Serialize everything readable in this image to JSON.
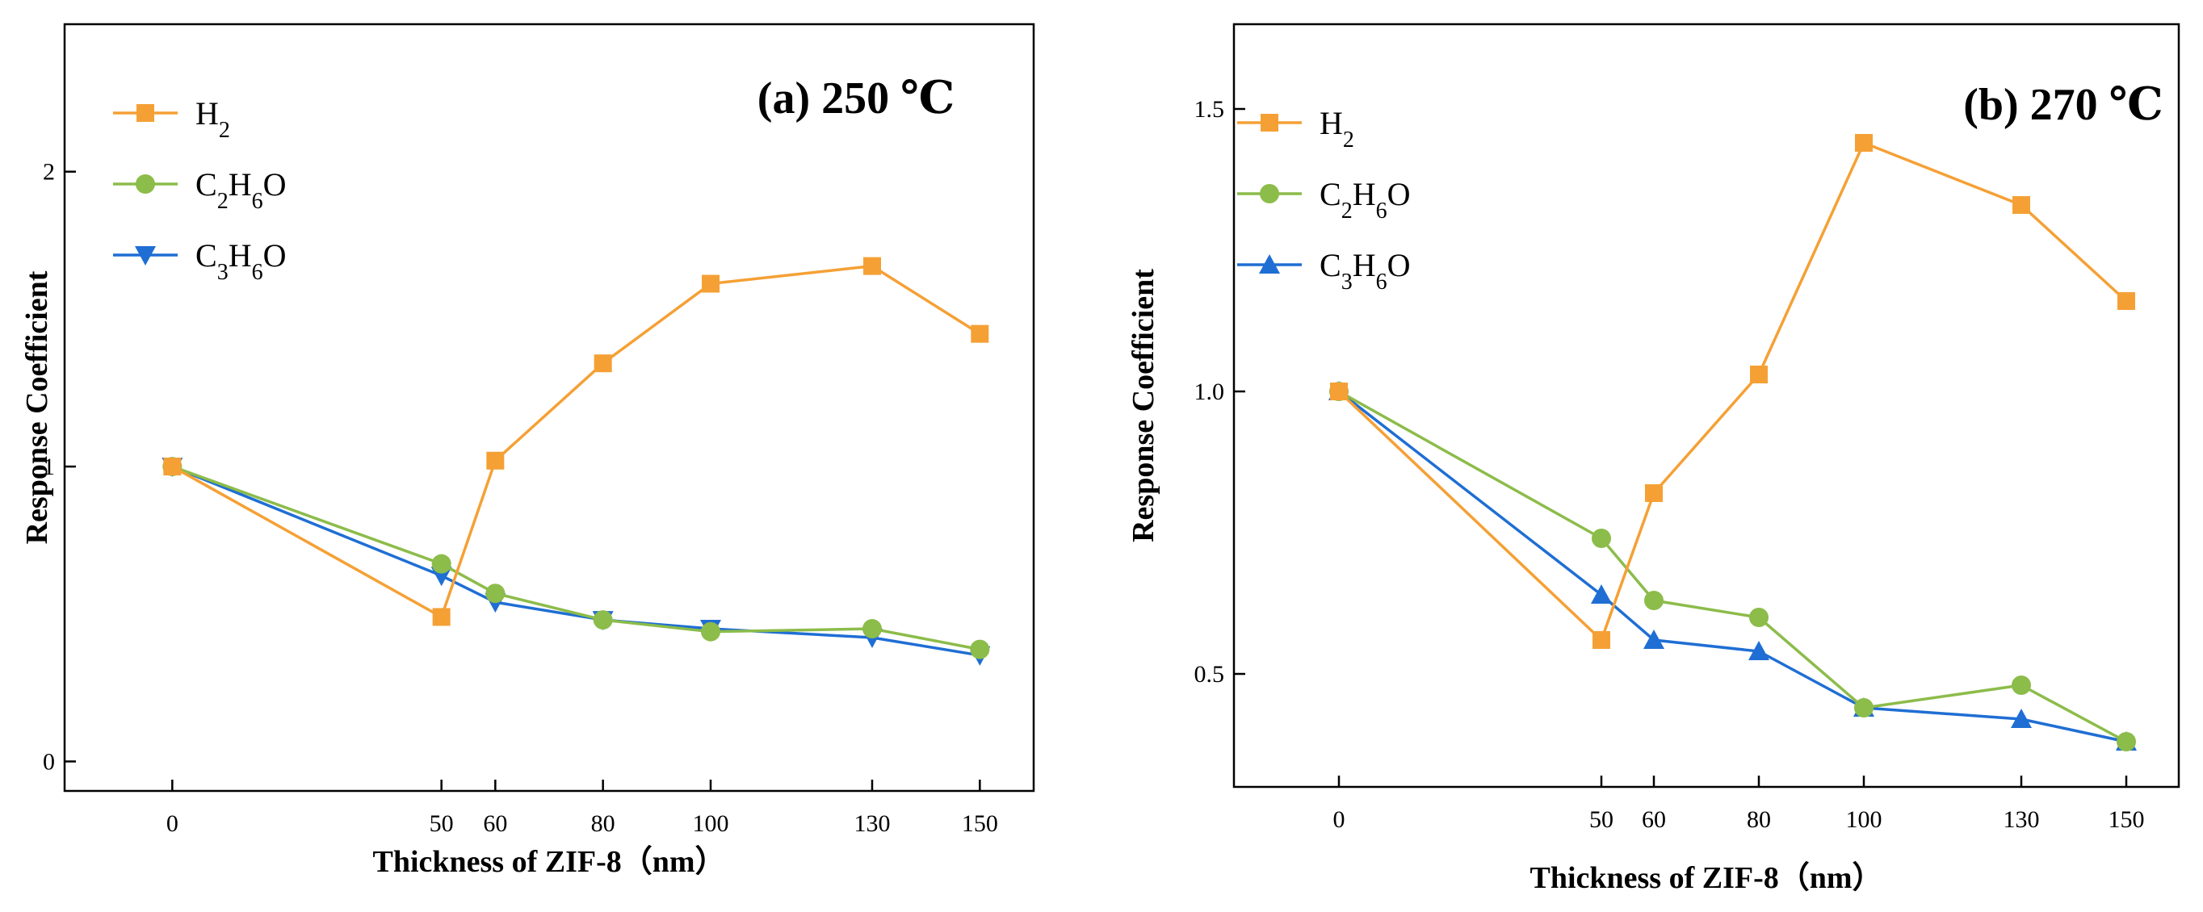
{
  "chart_data": [
    {
      "type": "line",
      "panel": "a",
      "title": "(a)  250 ℃",
      "xlabel": "Thickness of ZIF-8（nm）",
      "ylabel": "Response Coefficient",
      "x": [
        0,
        50,
        60,
        80,
        100,
        130,
        150
      ],
      "x_tick_labels": [
        "0",
        "50",
        "60",
        "80",
        "100",
        "130",
        "150"
      ],
      "xlim": [
        -20,
        160
      ],
      "ylim": [
        -0.1,
        2.5
      ],
      "y_ticks": [
        0,
        1,
        2
      ],
      "y_tick_labels": [
        "0",
        "1",
        "2"
      ],
      "legend_position": "top-left",
      "series": [
        {
          "name": "H",
          "sub": "2",
          "tail": "",
          "color": "#f5a035",
          "marker": "square",
          "values": [
            1.0,
            0.49,
            1.02,
            1.35,
            1.62,
            1.68,
            1.45
          ]
        },
        {
          "name": "C",
          "sub": "2",
          "mid": "H",
          "sub2": "6",
          "tail": "O",
          "color": "#8cbc4a",
          "marker": "circle",
          "values": [
            1.0,
            0.67,
            0.57,
            0.48,
            0.44,
            0.45,
            0.38
          ]
        },
        {
          "name": "C",
          "sub": "3",
          "mid": "H",
          "sub2": "6",
          "tail": "O",
          "color": "#1f6ed4",
          "marker": "triangle-down",
          "values": [
            1.0,
            0.63,
            0.54,
            0.48,
            0.45,
            0.42,
            0.36
          ]
        }
      ]
    },
    {
      "type": "line",
      "panel": "b",
      "title": "(b)  270 ℃",
      "xlabel": "Thickness of ZIF-8（nm）",
      "ylabel": "Response Coefficient",
      "x": [
        0,
        50,
        60,
        80,
        100,
        130,
        150
      ],
      "x_tick_labels": [
        "0",
        "50",
        "60",
        "80",
        "100",
        "130",
        "150"
      ],
      "xlim": [
        -20,
        160
      ],
      "ylim": [
        0.3,
        1.65
      ],
      "y_ticks": [
        0.5,
        1.0,
        1.5
      ],
      "y_tick_labels": [
        "0.5",
        "1.0",
        "1.5"
      ],
      "legend_position": "top-left",
      "series": [
        {
          "name": "H",
          "sub": "2",
          "tail": "",
          "color": "#f5a035",
          "marker": "square",
          "values": [
            1.0,
            0.56,
            0.82,
            1.03,
            1.44,
            1.33,
            1.16
          ]
        },
        {
          "name": "C",
          "sub": "2",
          "mid": "H",
          "sub2": "6",
          "tail": "O",
          "color": "#8cbc4a",
          "marker": "circle",
          "values": [
            1.0,
            0.74,
            0.63,
            0.6,
            0.44,
            0.48,
            0.38
          ]
        },
        {
          "name": "C",
          "sub": "3",
          "mid": "H",
          "sub2": "6",
          "tail": "O",
          "color": "#1f6ed4",
          "marker": "triangle-up",
          "values": [
            1.0,
            0.64,
            0.56,
            0.54,
            0.44,
            0.42,
            0.38
          ]
        }
      ]
    }
  ]
}
